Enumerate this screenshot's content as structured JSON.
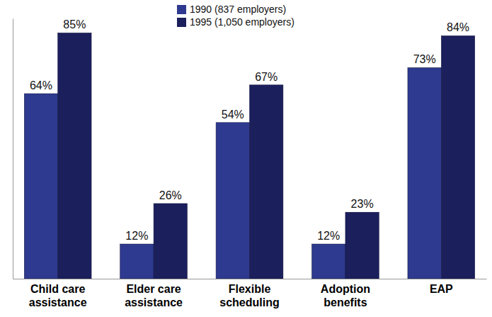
{
  "chart_data": {
    "type": "bar",
    "categories": [
      "Child care assistance",
      "Elder care assistance",
      "Flexible scheduling",
      "Adoption benefits",
      "EAP"
    ],
    "series": [
      {
        "name": "1990 (837 employers)",
        "color": "#2e3a8f",
        "values": [
          64,
          12,
          54,
          12,
          73
        ],
        "value_labels": [
          "64%",
          "12%",
          "54%",
          "12%",
          "73%"
        ]
      },
      {
        "name": "1995 (1,050 employers)",
        "color": "#1b1f5c",
        "values": [
          85,
          26,
          67,
          23,
          84
        ],
        "value_labels": [
          "85%",
          "26%",
          "67%",
          "23%",
          "84%"
        ]
      }
    ],
    "ylim": [
      0,
      90
    ],
    "tick_labels": "x",
    "data_labels": true,
    "legend": "top"
  }
}
